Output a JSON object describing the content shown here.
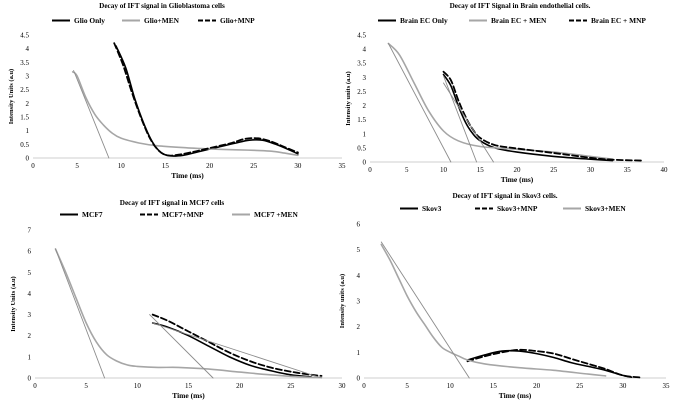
{
  "chart_data": [
    {
      "type": "line",
      "title": "Decay of IFT signal in Glioblastoma cells",
      "xlabel": "Time (ms)",
      "ylabel": "Intensity Units (a.u)",
      "xlim": [
        0,
        35
      ],
      "ylim": [
        0,
        4.5
      ],
      "xticks": [
        "0",
        "5",
        "10",
        "15",
        "20",
        "25",
        "30",
        "35"
      ],
      "yticks": [
        "0",
        "0.5",
        "1",
        "1.5",
        "2",
        "2.5",
        "3",
        "3.5",
        "4",
        "4.5"
      ],
      "legend_position": "top",
      "series": [
        {
          "name": "Glio Only",
          "style": "solid-black",
          "x": [
            9.4,
            10.5,
            11.5,
            12.5,
            13.5,
            14.5,
            15.5,
            17,
            19,
            21,
            23,
            24.5,
            26,
            27.5,
            29,
            30
          ],
          "y": [
            4.1,
            3.3,
            2.2,
            1.3,
            0.6,
            0.2,
            0.08,
            0.1,
            0.25,
            0.4,
            0.55,
            0.65,
            0.65,
            0.5,
            0.3,
            0.15
          ]
        },
        {
          "name": "Glio+MEN",
          "style": "solid-gray",
          "x": [
            4.5,
            5,
            6,
            7,
            8,
            9,
            10,
            12,
            14,
            17,
            20,
            23,
            25,
            27,
            28.5,
            30
          ],
          "y": [
            3.15,
            3.0,
            2.2,
            1.6,
            1.2,
            0.9,
            0.72,
            0.55,
            0.45,
            0.38,
            0.33,
            0.3,
            0.28,
            0.25,
            0.18,
            0.1
          ]
        },
        {
          "name": "Glio+MNP",
          "style": "dash-black",
          "x": [
            9.2,
            10.2,
            11.2,
            12.2,
            13.2,
            14.2,
            15.2,
            16.5,
            18.5,
            20.5,
            22.5,
            24,
            25.5,
            27,
            28.5,
            30
          ],
          "y": [
            4.2,
            3.4,
            2.4,
            1.5,
            0.75,
            0.28,
            0.1,
            0.12,
            0.25,
            0.4,
            0.55,
            0.7,
            0.72,
            0.6,
            0.4,
            0.2
          ]
        },
        {
          "name": "",
          "style": "trend-gray",
          "x": [
            4.6,
            8.6
          ],
          "y": [
            3.2,
            0
          ]
        }
      ]
    },
    {
      "type": "line",
      "title": "Decay of IFT Signal in Brain endothelial cells.",
      "xlabel": "Time (ms)",
      "ylabel": "Intensity units (a.u)",
      "xlim": [
        0,
        40
      ],
      "ylim": [
        0,
        4.5
      ],
      "xticks": [
        "0",
        "5",
        "10",
        "15",
        "20",
        "25",
        "30",
        "35",
        "40"
      ],
      "yticks": [
        "0",
        "0.5",
        "1",
        "1.5",
        "2",
        "2.5",
        "3",
        "3.5",
        "4",
        "4.5"
      ],
      "legend_position": "top",
      "series": [
        {
          "name": "Brain EC Only",
          "style": "solid-black",
          "x": [
            10,
            11,
            12,
            13,
            14,
            15,
            17,
            20,
            25,
            30,
            33
          ],
          "y": [
            3.1,
            2.7,
            2.0,
            1.4,
            1.0,
            0.75,
            0.5,
            0.35,
            0.2,
            0.1,
            0.05
          ]
        },
        {
          "name": "Brain EC + MEN",
          "style": "solid-gray",
          "x": [
            2.5,
            4,
            6,
            8,
            10,
            12,
            15,
            20,
            25,
            30,
            33
          ],
          "y": [
            4.2,
            3.8,
            2.8,
            1.8,
            1.1,
            0.75,
            0.55,
            0.45,
            0.35,
            0.2,
            0.1
          ]
        },
        {
          "name": "Brain EC + MNP",
          "style": "dash-black",
          "x": [
            10,
            11,
            12,
            13,
            14,
            15,
            17,
            20,
            25,
            30,
            33,
            37
          ],
          "y": [
            3.2,
            2.9,
            2.2,
            1.6,
            1.15,
            0.85,
            0.6,
            0.48,
            0.32,
            0.15,
            0.08,
            0.05
          ]
        },
        {
          "name": "",
          "style": "trend-gray",
          "x": [
            2.5,
            11
          ],
          "y": [
            4.2,
            0
          ]
        },
        {
          "name": "",
          "style": "trend-gray",
          "x": [
            10,
            14.5
          ],
          "y": [
            3.05,
            0
          ]
        },
        {
          "name": "",
          "style": "trend-gray",
          "x": [
            10,
            16.8
          ],
          "y": [
            2.8,
            0
          ]
        }
      ]
    },
    {
      "type": "line",
      "title": "Decay of IFT signal in MCF7 cells",
      "xlabel": "Time (ms)",
      "ylabel": "Intensity Units (a.u)",
      "xlim": [
        0,
        30
      ],
      "ylim": [
        0,
        7
      ],
      "xticks": [
        "0",
        "5",
        "10",
        "15",
        "20",
        "25",
        "30"
      ],
      "yticks": [
        "0",
        "1",
        "2",
        "3",
        "4",
        "5",
        "6",
        "7"
      ],
      "legend_position": "top",
      "series": [
        {
          "name": "MCF7",
          "style": "solid-black",
          "x": [
            11.5,
            13,
            15,
            17,
            19,
            21,
            23,
            25,
            27
          ],
          "y": [
            2.6,
            2.4,
            2.0,
            1.5,
            1.0,
            0.6,
            0.35,
            0.15,
            0.05
          ]
        },
        {
          "name": "MCF7+MNP",
          "style": "dash-black",
          "x": [
            11.5,
            13,
            15,
            17,
            19,
            21,
            23,
            25,
            27,
            28
          ],
          "y": [
            3.0,
            2.7,
            2.2,
            1.7,
            1.2,
            0.8,
            0.5,
            0.3,
            0.15,
            0.1
          ]
        },
        {
          "name": "MCF7 +MEN",
          "style": "solid-gray",
          "x": [
            2,
            3,
            4,
            5,
            6,
            7,
            8,
            9,
            10,
            12,
            14,
            17,
            20,
            23,
            26,
            28
          ],
          "y": [
            6.1,
            5.0,
            3.8,
            2.6,
            1.7,
            1.1,
            0.8,
            0.62,
            0.55,
            0.5,
            0.5,
            0.42,
            0.28,
            0.15,
            0.05,
            0.02
          ]
        },
        {
          "name": "",
          "style": "trend-gray",
          "x": [
            2,
            6.8
          ],
          "y": [
            6.1,
            0
          ]
        },
        {
          "name": "",
          "style": "trend-gray",
          "x": [
            11.2,
            17.4
          ],
          "y": [
            3.0,
            0
          ]
        },
        {
          "name": "",
          "style": "trend-gray",
          "x": [
            11.5,
            28
          ],
          "y": [
            2.6,
            0
          ]
        }
      ]
    },
    {
      "type": "line",
      "title": "Decay of IFT signal in Skov3 cells.",
      "xlabel": "Time (ms)",
      "ylabel": "Intensity units (a.u)",
      "xlim": [
        0,
        35
      ],
      "ylim": [
        0,
        6
      ],
      "xticks": [
        "0",
        "5",
        "10",
        "15",
        "20",
        "25",
        "30",
        "35"
      ],
      "yticks": [
        "0",
        "1",
        "2",
        "3",
        "4",
        "5",
        "6"
      ],
      "legend_position": "top",
      "series": [
        {
          "name": "Skov3",
          "style": "solid-black",
          "x": [
            12,
            14,
            16,
            18,
            20,
            22,
            24,
            26,
            28,
            30,
            31
          ],
          "y": [
            0.7,
            0.9,
            1.05,
            1.05,
            0.95,
            0.8,
            0.6,
            0.45,
            0.3,
            0.1,
            0.03
          ]
        },
        {
          "name": "Skov3+MNP",
          "style": "dash-black",
          "x": [
            12,
            14,
            16,
            18,
            20,
            22,
            24,
            26,
            28,
            30,
            32
          ],
          "y": [
            0.65,
            0.85,
            1.0,
            1.1,
            1.05,
            0.95,
            0.75,
            0.55,
            0.35,
            0.1,
            0.02
          ]
        },
        {
          "name": "Skov3+MEN",
          "style": "solid-gray",
          "x": [
            2,
            3,
            4,
            5,
            6,
            7,
            8,
            9,
            10,
            11,
            12,
            14,
            18,
            22,
            26,
            28
          ],
          "y": [
            5.2,
            4.6,
            3.9,
            3.2,
            2.6,
            2.1,
            1.6,
            1.2,
            1.0,
            0.85,
            0.7,
            0.55,
            0.4,
            0.3,
            0.15,
            0.08
          ]
        },
        {
          "name": "",
          "style": "trend-gray",
          "x": [
            2,
            12.2
          ],
          "y": [
            5.3,
            0
          ]
        }
      ]
    }
  ]
}
